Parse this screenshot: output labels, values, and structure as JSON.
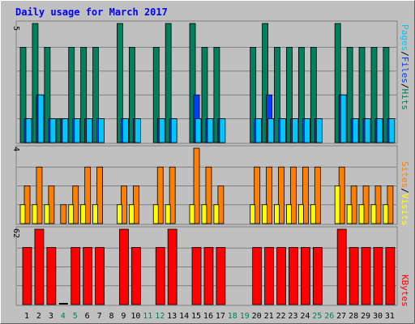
{
  "title": "Daily usage for March 2017",
  "colors": {
    "background": "#c0c0c0",
    "panel": "#c0c0c0",
    "grid": "#808080",
    "title": "#0000ff",
    "hits": "#00805c",
    "files": "#0040ff",
    "pages": "#00c8ff",
    "visits": "#ffff00",
    "sites": "#ff8000",
    "kbytes": "#ff0000",
    "weekend_label": "#00805c",
    "weekday_label": "#000000"
  },
  "chart_data": [
    {
      "type": "bar",
      "title": "Daily usage for March 2017",
      "ymax_label": "5",
      "ymax": 5,
      "grid": true,
      "legend": "right-vertical",
      "legend_labels": {
        "pages": "Pages",
        "files": "Files",
        "hits": "Hits",
        "sep1": "/",
        "sep2": "/"
      },
      "categories": [
        "1",
        "2",
        "3",
        "4",
        "5",
        "6",
        "7",
        "8",
        "9",
        "10",
        "11",
        "12",
        "13",
        "14",
        "15",
        "16",
        "17",
        "18",
        "19",
        "20",
        "21",
        "22",
        "23",
        "24",
        "25",
        "26",
        "27",
        "28",
        "29",
        "30",
        "31"
      ],
      "weekend_days": [
        "4",
        "5",
        "11",
        "12",
        "18",
        "19",
        "25",
        "26"
      ],
      "series": [
        {
          "name": "Hits",
          "values": [
            4,
            5,
            4,
            1,
            4,
            4,
            4,
            0,
            5,
            4,
            0,
            4,
            5,
            0,
            5,
            4,
            4,
            0,
            0,
            4,
            5,
            4,
            4,
            4,
            4,
            0,
            5,
            4,
            4,
            4,
            4
          ]
        },
        {
          "name": "Files",
          "values": [
            1,
            2,
            1,
            1,
            1,
            1,
            1,
            0,
            1,
            1,
            0,
            1,
            1,
            0,
            2,
            1,
            1,
            0,
            0,
            1,
            2,
            1,
            1,
            1,
            1,
            0,
            2,
            1,
            1,
            1,
            1
          ]
        },
        {
          "name": "Pages",
          "values": [
            1,
            2,
            1,
            1,
            1,
            1,
            1,
            0,
            1,
            1,
            0,
            1,
            1,
            0,
            1,
            1,
            1,
            0,
            0,
            1,
            1,
            1,
            1,
            1,
            1,
            0,
            2,
            1,
            1,
            1,
            1
          ]
        }
      ]
    },
    {
      "type": "bar",
      "ymax_label": "4",
      "ymax": 4,
      "grid": true,
      "legend": "right-vertical",
      "legend_labels": {
        "sites": "Sites",
        "visits": "Visits",
        "sep": "/"
      },
      "categories": [
        "1",
        "2",
        "3",
        "4",
        "5",
        "6",
        "7",
        "8",
        "9",
        "10",
        "11",
        "12",
        "13",
        "14",
        "15",
        "16",
        "17",
        "18",
        "19",
        "20",
        "21",
        "22",
        "23",
        "24",
        "25",
        "26",
        "27",
        "28",
        "29",
        "30",
        "31"
      ],
      "series": [
        {
          "name": "Sites",
          "values": [
            2,
            3,
            2,
            1,
            2,
            3,
            3,
            0,
            2,
            2,
            0,
            3,
            3,
            0,
            4,
            3,
            2,
            0,
            0,
            3,
            3,
            3,
            3,
            3,
            3,
            0,
            3,
            2,
            2,
            2,
            2
          ]
        },
        {
          "name": "Visits",
          "values": [
            1,
            1,
            1,
            0,
            1,
            1,
            1,
            0,
            1,
            1,
            0,
            1,
            1,
            0,
            1,
            1,
            1,
            0,
            0,
            1,
            1,
            1,
            1,
            1,
            1,
            0,
            2,
            1,
            1,
            1,
            1
          ]
        }
      ]
    },
    {
      "type": "bar",
      "ymax_label": "62",
      "ymax": 62,
      "grid": true,
      "legend": "right-vertical",
      "legend_labels": {
        "kbytes": "KBytes"
      },
      "categories": [
        "1",
        "2",
        "3",
        "4",
        "5",
        "6",
        "7",
        "8",
        "9",
        "10",
        "11",
        "12",
        "13",
        "14",
        "15",
        "16",
        "17",
        "18",
        "19",
        "20",
        "21",
        "22",
        "23",
        "24",
        "25",
        "26",
        "27",
        "28",
        "29",
        "30",
        "31"
      ],
      "series": [
        {
          "name": "KBytes",
          "values": [
            47,
            62,
            47,
            1,
            47,
            47,
            47,
            0,
            62,
            47,
            0,
            47,
            62,
            0,
            47,
            47,
            47,
            0,
            0,
            47,
            47,
            47,
            47,
            47,
            47,
            0,
            62,
            47,
            47,
            47,
            47
          ]
        }
      ]
    }
  ]
}
